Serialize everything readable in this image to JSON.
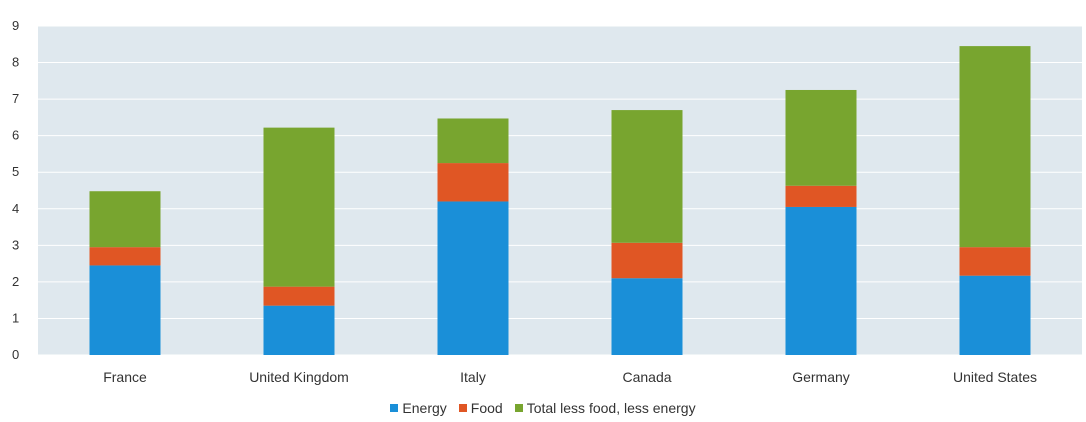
{
  "chart_data": {
    "type": "bar",
    "stacked": true,
    "categories": [
      "France",
      "United Kingdom",
      "Italy",
      "Canada",
      "Germany",
      "United States"
    ],
    "series": [
      {
        "name": "Energy",
        "color": "#1a8fd8",
        "values": [
          2.45,
          1.35,
          4.2,
          2.1,
          4.05,
          2.17
        ]
      },
      {
        "name": "Food",
        "color": "#e05624",
        "values": [
          0.5,
          0.52,
          1.05,
          0.97,
          0.58,
          0.78
        ]
      },
      {
        "name": "Total less food, less energy",
        "color": "#78a52f",
        "values": [
          1.53,
          4.35,
          1.22,
          3.63,
          2.62,
          5.5
        ]
      }
    ],
    "ylim": [
      0,
      9
    ],
    "yticks": [
      "0",
      "1",
      "2",
      "3",
      "4",
      "5",
      "6",
      "7",
      "8",
      "9"
    ],
    "grid": true,
    "legend_position": "bottom",
    "plot_background": "#dfe8ee",
    "title": "",
    "xlabel": "",
    "ylabel": ""
  }
}
